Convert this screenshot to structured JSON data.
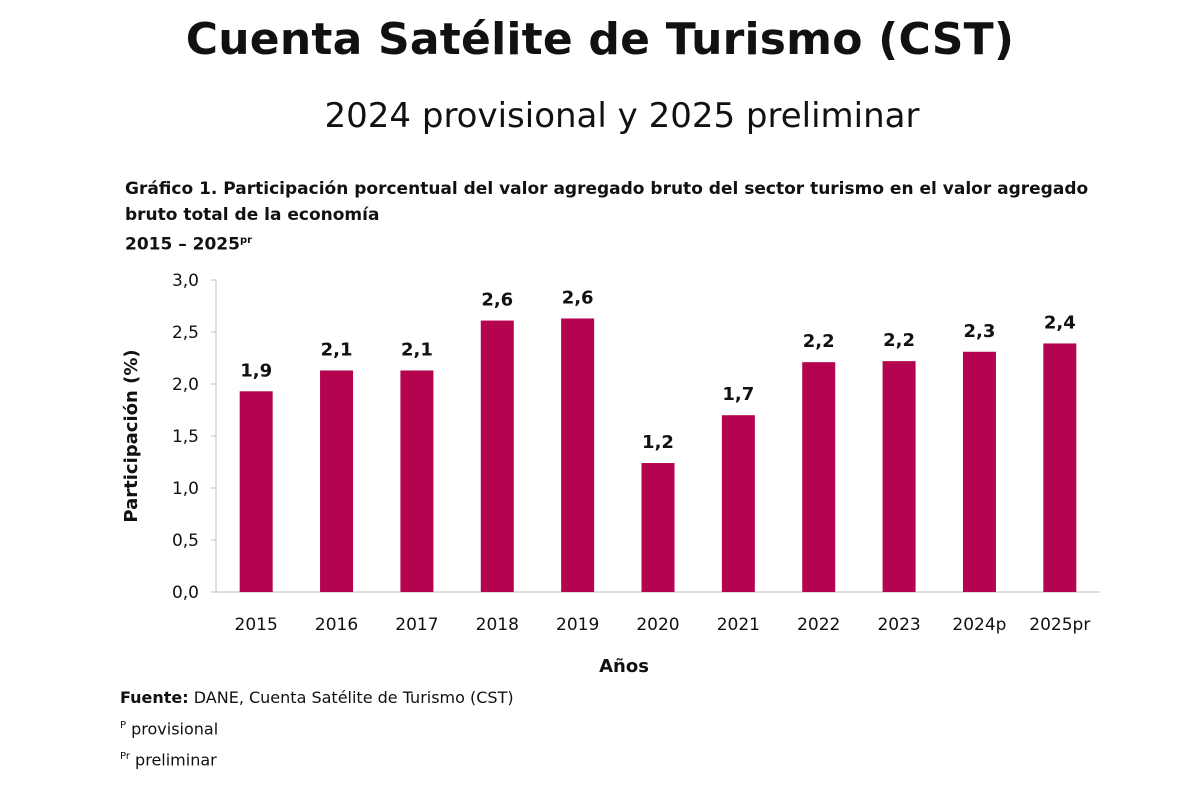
{
  "header": {
    "title": "Cuenta Satélite de Turismo (CST)",
    "subtitle": "2024 provisional y 2025 preliminar"
  },
  "chart_heading": {
    "line1": "Gráfico 1. Participación porcentual del valor agregado bruto del sector turismo en el valor agregado",
    "line2": "bruto total de la economía",
    "period": "2015 – 2025",
    "period_sup": "pr"
  },
  "colors": {
    "bar": "#B5044F",
    "axis": "#BFBFBF",
    "text": "#111111"
  },
  "chart_data": {
    "type": "bar",
    "categories": [
      "2015",
      "2016",
      "2017",
      "2018",
      "2019",
      "2020",
      "2021",
      "2022",
      "2023",
      "2024p",
      "2025pr"
    ],
    "values": [
      1.93,
      2.13,
      2.13,
      2.61,
      2.63,
      1.24,
      1.7,
      2.21,
      2.22,
      2.31,
      2.39
    ],
    "data_labels": [
      "1,9",
      "2,1",
      "2,1",
      "2,6",
      "2,6",
      "1,2",
      "1,7",
      "2,2",
      "2,2",
      "2,3",
      "2,4"
    ],
    "ytick_labels": [
      "0,0",
      "0,5",
      "1,0",
      "1,5",
      "2,0",
      "2,5",
      "3,0"
    ],
    "yticks": [
      0,
      0.5,
      1.0,
      1.5,
      2.0,
      2.5,
      3.0
    ],
    "ylim": [
      0,
      3.0
    ],
    "xlabel": "Años",
    "ylabel": "Participación (%)",
    "grid": false,
    "legend": "none"
  },
  "notes": {
    "source_label": "Fuente:",
    "source_text": " DANE, Cuenta Satélite de Turismo (CST)",
    "p_sup": "P",
    "p_text": " provisional",
    "pr_sup": "Pr",
    "pr_text": " preliminar"
  }
}
